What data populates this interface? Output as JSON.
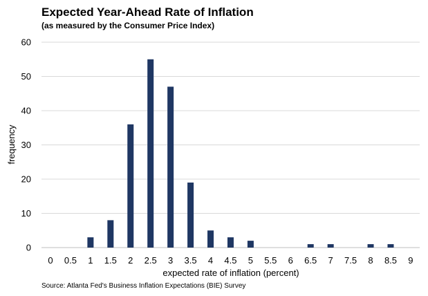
{
  "chart_data": {
    "type": "bar",
    "title": "Expected Year-Ahead Rate of Inflation",
    "subtitle": "(as measured by the Consumer Price Index)",
    "xlabel": "expected rate of inflation (percent)",
    "ylabel": "frequency",
    "ylim": [
      0,
      60
    ],
    "yticks": [
      0,
      10,
      20,
      30,
      40,
      50,
      60
    ],
    "grid": true,
    "legend": "none",
    "bar_color": "#1f3763",
    "categories": [
      "0",
      "0.5",
      "1",
      "1.5",
      "2",
      "2.5",
      "3",
      "3.5",
      "4",
      "4.5",
      "5",
      "5.5",
      "6",
      "6.5",
      "7",
      "7.5",
      "8",
      "8.5",
      "9"
    ],
    "values": [
      0,
      0,
      3,
      8,
      36,
      55,
      47,
      19,
      5,
      3,
      2,
      0,
      0,
      1,
      1,
      0,
      1,
      1,
      0
    ]
  },
  "source": "Source: Atlanta Fed's Business Inflation Expectations (BIE) Survey"
}
